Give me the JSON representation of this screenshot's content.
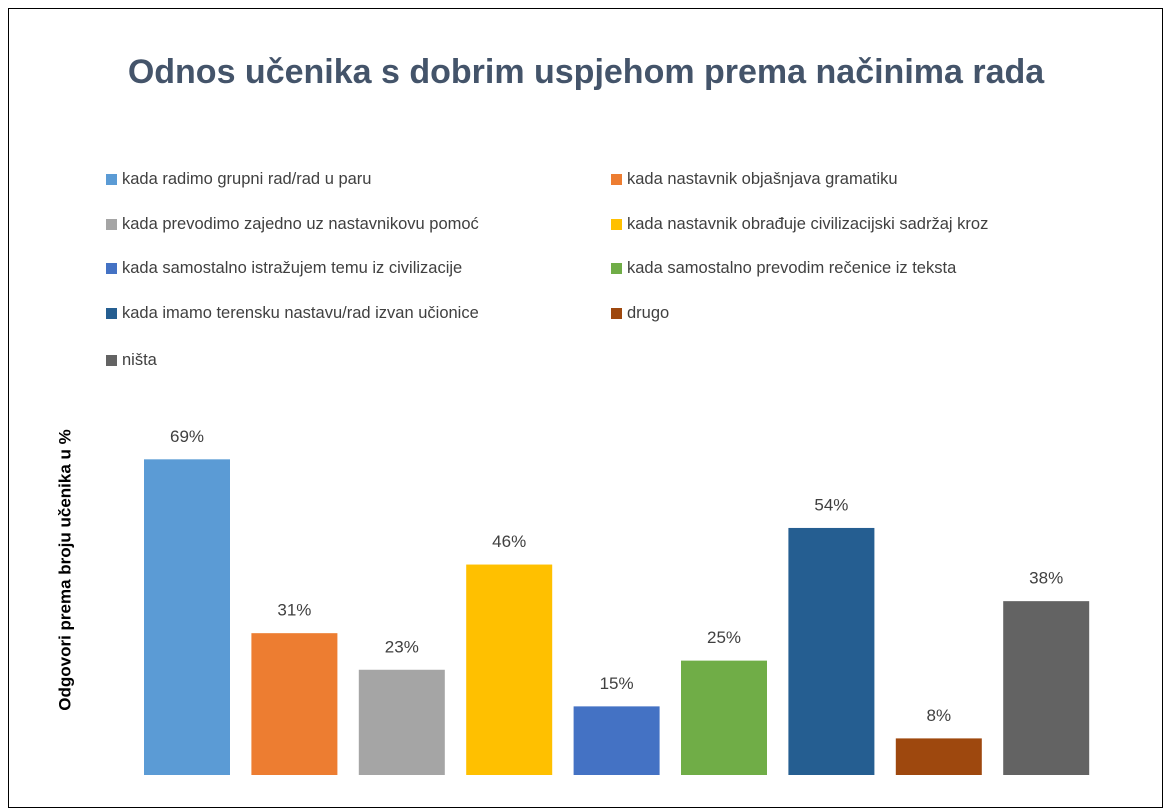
{
  "chart_data": {
    "type": "bar",
    "title": "Odnos učenika s dobrim uspjehom prema načinima rada",
    "y_label": "Odgovori prema broju učenika u %",
    "ylim": [
      0,
      80
    ],
    "series": [
      {
        "name": "kada radimo grupni rad/rad u paru",
        "color": "#5b9bd5",
        "values": [
          69
        ],
        "value_labels": [
          "69%"
        ]
      },
      {
        "name": "kada nastavnik objašnjava gramatiku",
        "color": "#ed7d31",
        "values": [
          31
        ],
        "value_labels": [
          "31%"
        ]
      },
      {
        "name": "kada prevodimo zajedno uz nastavnikovu pomoć",
        "color": "#a5a5a5",
        "values": [
          23
        ],
        "value_labels": [
          "23%"
        ]
      },
      {
        "name": "kada nastavnik obrađuje civilizacijski sadržaj kroz",
        "color": "#ffc000",
        "values": [
          46
        ],
        "value_labels": [
          "46%"
        ]
      },
      {
        "name": "kada samostalno istražujem temu iz civilizacije",
        "color": "#4472c4",
        "values": [
          15
        ],
        "value_labels": [
          "15%"
        ]
      },
      {
        "name": "kada samostalno prevodim rečenice iz teksta",
        "color": "#70ad47",
        "values": [
          25
        ],
        "value_labels": [
          "25%"
        ]
      },
      {
        "name": "kada imamo terensku nastavu/rad izvan učionice",
        "color": "#255e91",
        "values": [
          54
        ],
        "value_labels": [
          "54%"
        ]
      },
      {
        "name": "drugo",
        "color": "#9e480e",
        "values": [
          8
        ],
        "value_labels": [
          "8%"
        ]
      },
      {
        "name": "ništa",
        "color": "#636363",
        "values": [
          38
        ],
        "value_labels": [
          "38%"
        ]
      }
    ]
  }
}
